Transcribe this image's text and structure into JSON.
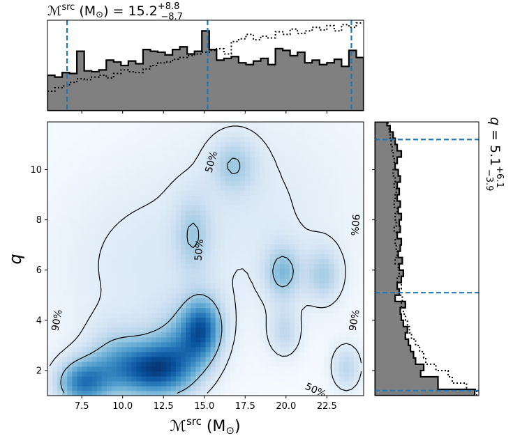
{
  "chart_data": {
    "type": "corner",
    "top_marginal": {
      "title_prefix": "ℳ",
      "title_sup": "src",
      "title_unit": " (M",
      "title_sun": "⊙",
      "title_eq": ") = 15.2",
      "title_plus": "+8.8",
      "title_minus": "−8.7",
      "quantiles": [
        6.6,
        15.2,
        24.0
      ],
      "bin_edges": [
        5.4,
        5.85,
        6.3,
        6.75,
        7.2,
        7.65,
        8.1,
        8.55,
        9.0,
        9.45,
        9.9,
        10.35,
        10.8,
        11.25,
        11.7,
        12.15,
        12.6,
        13.05,
        13.5,
        13.95,
        14.4,
        14.85,
        15.3,
        15.75,
        16.2,
        16.65,
        17.1,
        17.55,
        18.0,
        18.45,
        18.9,
        19.35,
        19.8,
        20.25,
        20.7,
        21.15,
        21.6,
        22.05,
        22.5,
        22.95,
        23.4,
        23.85,
        24.3,
        24.75
      ],
      "hist_filled": [
        0.4,
        0.38,
        0.43,
        0.42,
        0.67,
        0.45,
        0.44,
        0.46,
        0.57,
        0.55,
        0.51,
        0.56,
        0.53,
        0.69,
        0.67,
        0.66,
        0.63,
        0.69,
        0.72,
        0.64,
        0.67,
        0.9,
        0.69,
        0.57,
        0.59,
        0.61,
        0.54,
        0.52,
        0.56,
        0.59,
        0.52,
        0.7,
        0.68,
        0.62,
        0.66,
        0.54,
        0.57,
        0.52,
        0.54,
        0.58,
        0.5,
        0.68,
        0.6
      ],
      "hist_dotted": [
        0.22,
        0.26,
        0.28,
        0.32,
        0.36,
        0.35,
        0.38,
        0.4,
        0.37,
        0.42,
        0.46,
        0.44,
        0.43,
        0.47,
        0.51,
        0.54,
        0.55,
        0.58,
        0.6,
        0.62,
        0.64,
        0.66,
        0.68,
        0.7,
        0.64,
        0.78,
        0.81,
        0.86,
        0.8,
        0.84,
        0.82,
        0.89,
        0.86,
        0.92,
        0.87,
        0.9,
        0.94,
        0.91,
        0.96,
        0.9,
        0.97,
        0.94,
        0.99
      ],
      "xlim": [
        5.4,
        24.75
      ]
    },
    "joint": {
      "xlabel_prefix": "ℳ",
      "xlabel_sup": "src",
      "xlabel_unit": " (M",
      "xlabel_sun": "⊙",
      "xlabel_close": ")",
      "ylabel": "q",
      "xlim": [
        5.4,
        24.75
      ],
      "ylim": [
        1.0,
        11.9
      ],
      "xticks": [
        7.5,
        10.0,
        12.5,
        15.0,
        17.5,
        20.0,
        22.5
      ],
      "xtick_labels": [
        "7.5",
        "10.0",
        "12.5",
        "15.0",
        "17.5",
        "20.0",
        "22.5"
      ],
      "yticks": [
        2,
        4,
        6,
        8,
        10
      ],
      "ytick_labels": [
        "2",
        "4",
        "6",
        "8",
        "10"
      ],
      "density_peaks": [
        {
          "x": 7.5,
          "y": 1.5,
          "w": 0.95,
          "sx": 1.2,
          "sy": 0.7
        },
        {
          "x": 11.8,
          "y": 2.0,
          "w": 1.0,
          "sx": 1.6,
          "sy": 0.8
        },
        {
          "x": 14.9,
          "y": 3.7,
          "w": 0.9,
          "sx": 0.9,
          "sy": 0.9
        },
        {
          "x": 9.5,
          "y": 2.4,
          "w": 0.45,
          "sx": 1.3,
          "sy": 1.0
        },
        {
          "x": 13.5,
          "y": 2.8,
          "w": 0.55,
          "sx": 1.4,
          "sy": 1.2
        },
        {
          "x": 19.8,
          "y": 5.9,
          "w": 0.55,
          "sx": 0.8,
          "sy": 0.8
        },
        {
          "x": 22.3,
          "y": 5.8,
          "w": 0.45,
          "sx": 0.8,
          "sy": 0.8
        },
        {
          "x": 19.9,
          "y": 3.5,
          "w": 0.38,
          "sx": 0.7,
          "sy": 0.7
        },
        {
          "x": 23.7,
          "y": 2.1,
          "w": 0.45,
          "sx": 0.7,
          "sy": 0.7
        },
        {
          "x": 16.8,
          "y": 10.2,
          "w": 0.42,
          "sx": 1.0,
          "sy": 0.8
        },
        {
          "x": 14.3,
          "y": 7.4,
          "w": 0.38,
          "sx": 0.8,
          "sy": 1.1
        },
        {
          "x": 10.0,
          "y": 6.0,
          "w": 0.2,
          "sx": 4.0,
          "sy": 3.0
        },
        {
          "x": 18.5,
          "y": 8.5,
          "w": 0.22,
          "sx": 5.0,
          "sy": 3.5
        }
      ],
      "contour_labels": [
        {
          "text": "90%",
          "x": 6.0,
          "y": 4.0,
          "angle": -80
        },
        {
          "text": "90%",
          "x": 24.2,
          "y": 4.0,
          "angle": -80
        },
        {
          "text": "90%",
          "x": 24.2,
          "y": 7.8,
          "angle": 95
        },
        {
          "text": "50%",
          "x": 15.45,
          "y": 10.3,
          "angle": -75
        },
        {
          "text": "50%",
          "x": 14.7,
          "y": 6.8,
          "angle": -85
        },
        {
          "text": "50%",
          "x": 21.8,
          "y": 1.2,
          "angle": 25
        }
      ],
      "colormap": "Blues"
    },
    "right_marginal": {
      "title_q": "q",
      "title_eq": " = 5.1",
      "title_plus": "+6.1",
      "title_minus": "−3.9",
      "quantiles": [
        1.2,
        5.1,
        11.2
      ],
      "ylim": [
        1.0,
        11.9
      ],
      "bin_edges": [
        1.0,
        1.25,
        1.5,
        1.75,
        2.0,
        2.25,
        2.5,
        2.75,
        3.0,
        3.25,
        3.5,
        3.75,
        4.0,
        4.25,
        4.5,
        4.75,
        5.0,
        5.25,
        5.5,
        5.75,
        6.0,
        6.25,
        6.5,
        6.75,
        7.0,
        7.25,
        7.5,
        7.75,
        8.0,
        8.25,
        8.5,
        8.75,
        9.0,
        9.25,
        9.5,
        9.75,
        10.0,
        10.25,
        10.5,
        10.75,
        11.0,
        11.25,
        11.5,
        11.75,
        11.9
      ],
      "hist_filled": [
        0.98,
        0.62,
        0.62,
        0.45,
        0.48,
        0.4,
        0.38,
        0.35,
        0.33,
        0.3,
        0.32,
        0.28,
        0.26,
        0.25,
        0.3,
        0.2,
        0.24,
        0.22,
        0.26,
        0.28,
        0.24,
        0.27,
        0.23,
        0.25,
        0.26,
        0.22,
        0.25,
        0.24,
        0.26,
        0.23,
        0.25,
        0.22,
        0.24,
        0.22,
        0.25,
        0.23,
        0.2,
        0.22,
        0.26,
        0.22,
        0.2,
        0.18,
        0.15,
        0.12
      ],
      "hist_dotted": [
        1.0,
        0.9,
        0.76,
        0.72,
        0.6,
        0.5,
        0.48,
        0.44,
        0.4,
        0.36,
        0.34,
        0.32,
        0.3,
        0.28,
        0.26,
        0.27,
        0.24,
        0.26,
        0.22,
        0.24,
        0.23,
        0.2,
        0.22,
        0.21,
        0.2,
        0.22,
        0.19,
        0.21,
        0.2,
        0.22,
        0.19,
        0.2,
        0.21,
        0.19,
        0.2,
        0.18,
        0.2,
        0.19,
        0.18,
        0.17,
        0.16,
        0.15,
        0.14,
        0.13
      ]
    },
    "colors": {
      "hist_fill": "#808080",
      "hist_edge": "#000000",
      "quantile_line": "#1f77b4",
      "contour": "#000000",
      "density_low": "#f7fbff",
      "density_high": "#08306b"
    }
  }
}
